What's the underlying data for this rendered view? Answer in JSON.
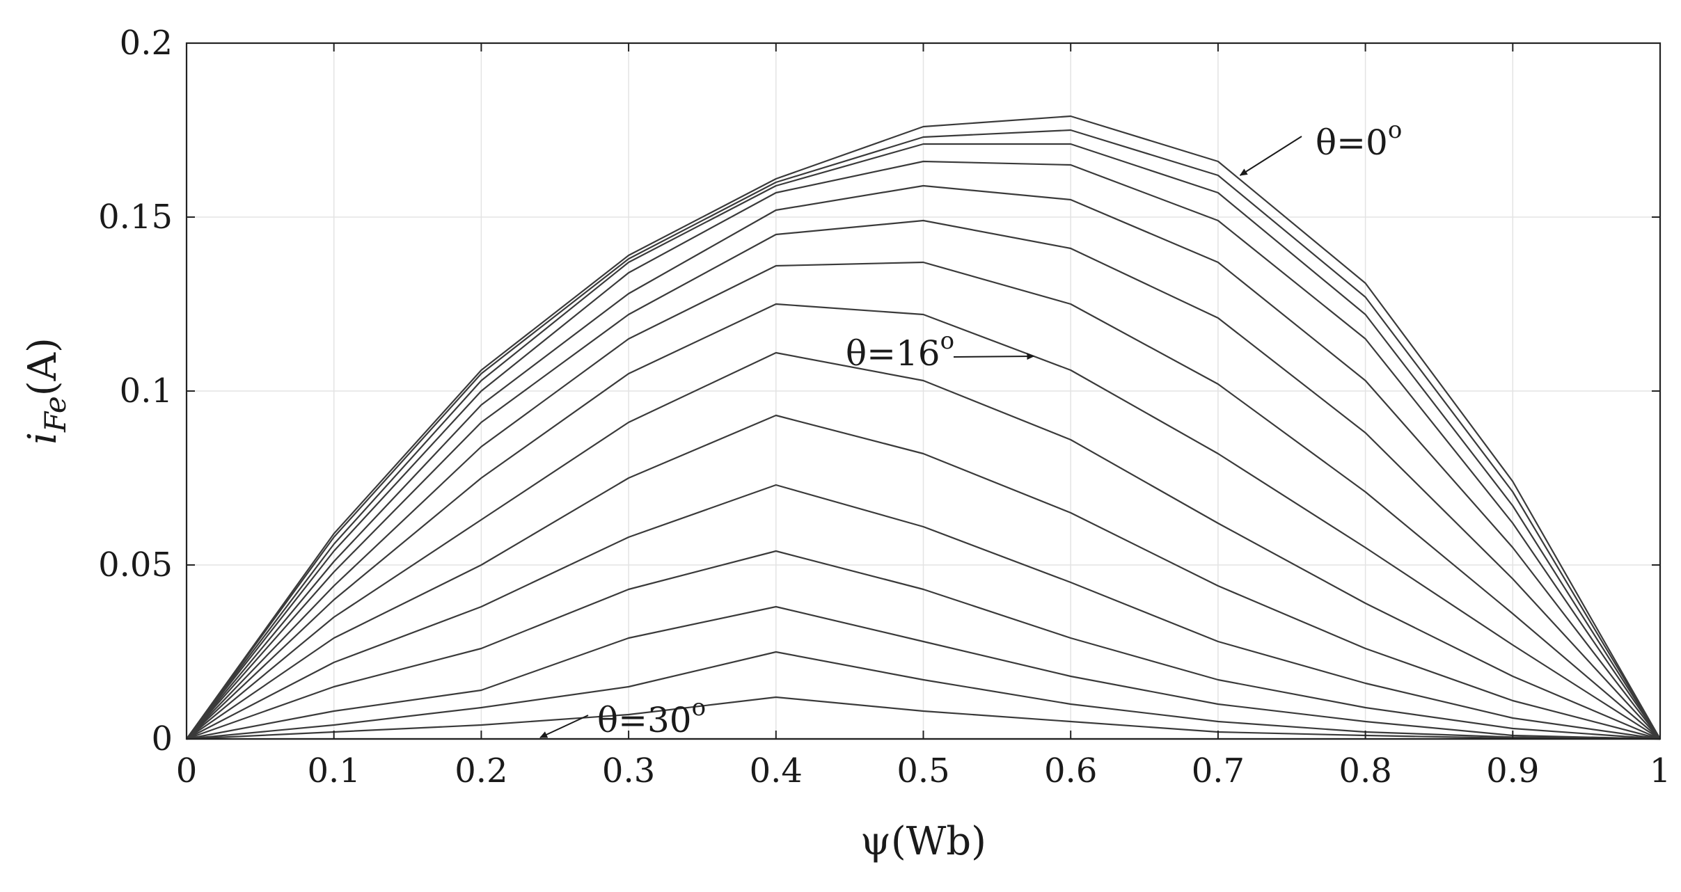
{
  "chart_data": {
    "type": "line",
    "title": "",
    "xlabel": "ψ(Wb)",
    "ylabel": {
      "main": "i",
      "sub": "Fe",
      "unit": "(A)"
    },
    "xlim": [
      0,
      1
    ],
    "ylim": [
      0,
      0.2
    ],
    "grid": true,
    "x": [
      0,
      0.1,
      0.2,
      0.3,
      0.4,
      0.5,
      0.6,
      0.7,
      0.8,
      0.9,
      1.0
    ],
    "x_tick_labels": [
      "0",
      "0.1",
      "0.2",
      "0.3",
      "0.4",
      "0.5",
      "0.6",
      "0.7",
      "0.8",
      "0.9",
      "1"
    ],
    "y_ticks": [
      0,
      0.05,
      0.1,
      0.15,
      0.2
    ],
    "y_tick_labels": [
      "0",
      "0.05",
      "0.1",
      "0.15",
      "0.2"
    ],
    "series": [
      {
        "values": [
          0,
          0.059,
          0.106,
          0.139,
          0.161,
          0.176,
          0.179,
          0.166,
          0.131,
          0.074,
          0
        ]
      },
      {
        "values": [
          0,
          0.058,
          0.105,
          0.138,
          0.16,
          0.173,
          0.175,
          0.162,
          0.127,
          0.071,
          0
        ]
      },
      {
        "values": [
          0,
          0.056,
          0.103,
          0.137,
          0.159,
          0.171,
          0.171,
          0.157,
          0.122,
          0.067,
          0
        ]
      },
      {
        "values": [
          0,
          0.054,
          0.1,
          0.134,
          0.157,
          0.166,
          0.165,
          0.149,
          0.115,
          0.062,
          0
        ]
      },
      {
        "values": [
          0,
          0.051,
          0.096,
          0.128,
          0.152,
          0.159,
          0.155,
          0.137,
          0.103,
          0.055,
          0
        ]
      },
      {
        "values": [
          0,
          0.048,
          0.091,
          0.122,
          0.145,
          0.149,
          0.141,
          0.121,
          0.088,
          0.046,
          0
        ]
      },
      {
        "values": [
          0,
          0.044,
          0.084,
          0.115,
          0.136,
          0.137,
          0.125,
          0.102,
          0.071,
          0.036,
          0
        ]
      },
      {
        "values": [
          0,
          0.04,
          0.075,
          0.105,
          0.125,
          0.122,
          0.106,
          0.082,
          0.055,
          0.027,
          0
        ]
      },
      {
        "values": [
          0,
          0.035,
          0.063,
          0.091,
          0.111,
          0.103,
          0.086,
          0.062,
          0.039,
          0.018,
          0
        ]
      },
      {
        "values": [
          0,
          0.029,
          0.05,
          0.075,
          0.093,
          0.082,
          0.065,
          0.044,
          0.026,
          0.011,
          0
        ]
      },
      {
        "values": [
          0,
          0.022,
          0.038,
          0.058,
          0.073,
          0.061,
          0.045,
          0.028,
          0.016,
          0.006,
          0
        ]
      },
      {
        "values": [
          0,
          0.015,
          0.026,
          0.043,
          0.054,
          0.043,
          0.029,
          0.017,
          0.009,
          0.003,
          0
        ]
      },
      {
        "values": [
          0,
          0.008,
          0.014,
          0.029,
          0.038,
          0.028,
          0.018,
          0.01,
          0.005,
          0.001,
          0
        ]
      },
      {
        "values": [
          0,
          0.004,
          0.009,
          0.015,
          0.025,
          0.017,
          0.01,
          0.005,
          0.002,
          0.0005,
          0
        ]
      },
      {
        "values": [
          0,
          0.002,
          0.004,
          0.007,
          0.012,
          0.008,
          0.005,
          0.002,
          0.001,
          0.0002,
          0
        ]
      },
      {
        "values": [
          0,
          0.0,
          0.0,
          0.0,
          0.0,
          0.0,
          0.0,
          0.0,
          0.0,
          0.0,
          0
        ]
      }
    ],
    "annotations": [
      {
        "text": "θ=0",
        "sup": "o",
        "arrow_to": [
          0.715,
          0.162
        ]
      },
      {
        "text": "θ=16",
        "sup": "o",
        "arrow_to": [
          0.575,
          0.11
        ]
      },
      {
        "text": "θ=30",
        "sup": "o",
        "arrow_to": [
          0.24,
          0.0
        ]
      }
    ]
  }
}
